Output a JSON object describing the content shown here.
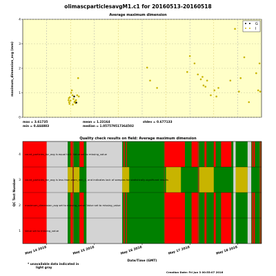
{
  "title": "olimascparticlesavgM1.c1 for 20160513-20160518",
  "chart_data": [
    {
      "type": "scatter",
      "title": "Average maximum dimension",
      "ylabel": "maximum_dimension_avg (mm)",
      "xlim": [
        "2016-05-13 12:00",
        "2016-05-18 12:00"
      ],
      "ylim": [
        0,
        4
      ],
      "yticks": [
        "0",
        "1",
        "2",
        "3",
        "4"
      ],
      "grid": true,
      "legend_position": "top-right",
      "legend": [
        {
          "label": "G",
          "color": "#000000"
        },
        {
          "label": "I",
          "color": "#c8b400"
        }
      ],
      "series": [
        {
          "name": "G",
          "color": "#1a1a1a",
          "points": [
            {
              "x": "2016-05-14 13:50",
              "y": 0.85
            },
            {
              "x": "2016-05-14 14:55",
              "y": 0.6
            }
          ]
        },
        {
          "name": "I",
          "color": "#c8b400",
          "points": [
            {
              "x": "2016-05-14 11:00",
              "y": 0.7
            },
            {
              "x": "2016-05-14 11:10",
              "y": 0.78
            },
            {
              "x": "2016-05-14 11:20",
              "y": 0.62
            },
            {
              "x": "2016-05-14 11:30",
              "y": 0.55
            },
            {
              "x": "2016-05-14 11:40",
              "y": 0.82
            },
            {
              "x": "2016-05-14 12:00",
              "y": 0.68
            },
            {
              "x": "2016-05-14 12:20",
              "y": 1.0
            },
            {
              "x": "2016-05-14 12:40",
              "y": 1.1
            },
            {
              "x": "2016-05-14 13:00",
              "y": 0.9
            },
            {
              "x": "2016-05-14 13:10",
              "y": 0.52
            },
            {
              "x": "2016-05-14 13:30",
              "y": 0.75
            },
            {
              "x": "2016-05-14 14:00",
              "y": 0.62
            },
            {
              "x": "2016-05-14 14:10",
              "y": 0.65
            },
            {
              "x": "2016-05-14 14:30",
              "y": 0.58
            },
            {
              "x": "2016-05-14 14:45",
              "y": 0.7
            },
            {
              "x": "2016-05-14 15:20",
              "y": 0.9
            },
            {
              "x": "2016-05-14 15:50",
              "y": 1.6
            },
            {
              "x": "2016-05-14 16:10",
              "y": 0.85
            },
            {
              "x": "2016-05-16 02:30",
              "y": 2.03
            },
            {
              "x": "2016-05-16 04:00",
              "y": 1.5
            },
            {
              "x": "2016-05-16 07:30",
              "y": 1.2
            },
            {
              "x": "2016-05-16 22:40",
              "y": 1.85
            },
            {
              "x": "2016-05-17 00:00",
              "y": 2.5
            },
            {
              "x": "2016-05-17 02:20",
              "y": 2.2
            },
            {
              "x": "2016-05-17 04:00",
              "y": 1.75
            },
            {
              "x": "2016-05-17 05:30",
              "y": 1.55
            },
            {
              "x": "2016-05-17 06:20",
              "y": 1.65
            },
            {
              "x": "2016-05-17 06:50",
              "y": 1.3
            },
            {
              "x": "2016-05-17 07:50",
              "y": 1.25
            },
            {
              "x": "2016-05-17 08:40",
              "y": 1.5
            },
            {
              "x": "2016-05-17 10:30",
              "y": 0.9
            },
            {
              "x": "2016-05-17 12:20",
              "y": 1.1
            },
            {
              "x": "2016-05-17 13:20",
              "y": 0.85
            },
            {
              "x": "2016-05-17 14:20",
              "y": 1.2
            },
            {
              "x": "2016-05-17 20:20",
              "y": 1.5
            },
            {
              "x": "2016-05-17 22:40",
              "y": 3.61
            },
            {
              "x": "2016-05-18 00:40",
              "y": 1.05
            },
            {
              "x": "2016-05-18 01:30",
              "y": 1.6
            },
            {
              "x": "2016-05-18 03:20",
              "y": 2.45
            },
            {
              "x": "2016-05-18 05:40",
              "y": 0.62
            },
            {
              "x": "2016-05-18 09:20",
              "y": 1.8
            },
            {
              "x": "2016-05-18 10:20",
              "y": 1.1
            },
            {
              "x": "2016-05-18 11:00",
              "y": 2.2
            },
            {
              "x": "2016-05-18 11:20",
              "y": 1.05
            }
          ]
        }
      ],
      "stats": {
        "max": "max = 3.61735",
        "min": "min = 0.444883",
        "mean": "mean = 1.23164",
        "median": "median = 1.057579517364502",
        "stdev": "stdev = 0.677133"
      }
    },
    {
      "type": "heatmap",
      "title": "Quality check results on field: Average maximum dimension",
      "xlabel": "Date/Time (GMT)",
      "ylabel": "QC Test Number",
      "xlim": [
        "2016-05-13 12:00",
        "2016-05-18 12:00"
      ],
      "xticks": [
        "May 14 2016",
        "May 15 2016",
        "May 16 2016",
        "May 17 2016",
        "May 18 2016"
      ],
      "rows": [
        {
          "test": "1",
          "label": "Value set to missing_value"
        },
        {
          "test": "2",
          "label": "maximum_dimension_avg set to missing_value: Value set to missing_value"
        },
        {
          "test": "3",
          "label": "count_particles_for_avg is less than warn_min_1, and indicates lack of samples for statistically-significant results"
        },
        {
          "test": "4",
          "label": "count_particles_for_avg is equal to 0. Value set to missing_value"
        }
      ],
      "colors": {
        "pass": "#008000",
        "missing": "#ff0000",
        "warn": "#c8b400",
        "unavailable": "#d3d3d3",
        "transition": "#8b4513"
      },
      "segments_all_rows": [
        {
          "from": "2016-05-13 12:00",
          "to": "2016-05-14 00:00",
          "state": "missing"
        },
        {
          "from": "2016-05-14 00:00",
          "to": "2016-05-14 10:35",
          "state": "unavailable"
        },
        {
          "from": "2016-05-14 20:00",
          "to": "2016-05-15 14:00",
          "state": "unavailable"
        },
        {
          "from": "2016-05-17 21:50",
          "to": "2016-05-17 23:00",
          "state": "unavailable"
        },
        {
          "from": "2016-05-18 05:00",
          "to": "2016-05-18 06:50",
          "state": "unavailable"
        }
      ],
      "segments_test3": [
        {
          "from": "2016-05-14 10:35",
          "to": "2016-05-14 16:30",
          "state": "warn"
        },
        {
          "from": "2016-05-15 14:00",
          "to": "2016-05-15 17:30",
          "state": "warn"
        },
        {
          "from": "2016-05-16 12:00",
          "to": "2016-05-16 19:30",
          "state": "warn"
        },
        {
          "from": "2016-05-17 04:40",
          "to": "2016-05-17 12:00",
          "state": "warn"
        },
        {
          "from": "2016-05-17 23:00",
          "to": "2016-05-18 05:00",
          "state": "warn"
        }
      ],
      "segments_missing_rows": [
        {
          "from": "2016-05-14 12:00",
          "to": "2016-05-14 13:00",
          "state": "missing"
        },
        {
          "from": "2016-05-14 16:30",
          "to": "2016-05-14 18:40",
          "state": "missing"
        },
        {
          "from": "2016-05-15 14:40",
          "to": "2016-05-15 15:10",
          "state": "missing"
        },
        {
          "from": "2016-05-15 16:00",
          "to": "2016-05-15 16:20",
          "state": "missing"
        },
        {
          "from": "2016-05-16 11:20",
          "to": "2016-05-16 21:30",
          "state": "missing"
        },
        {
          "from": "2016-05-17 00:50",
          "to": "2016-05-17 04:00",
          "state": "missing"
        },
        {
          "from": "2016-05-17 07:20",
          "to": "2016-05-17 08:20",
          "state": "missing"
        },
        {
          "from": "2016-05-17 12:00",
          "to": "2016-05-17 13:00",
          "state": "missing"
        },
        {
          "from": "2016-05-17 15:40",
          "to": "2016-05-17 20:50",
          "state": "missing"
        },
        {
          "from": "2016-05-18 07:10",
          "to": "2016-05-18 07:40",
          "state": "missing"
        },
        {
          "from": "2016-05-18 08:00",
          "to": "2016-05-18 08:40",
          "state": "missing"
        }
      ],
      "segments_transition": [
        {
          "from": "2016-05-14 13:00",
          "to": "2016-05-14 13:40",
          "state": "transition"
        },
        {
          "from": "2016-05-16 11:00",
          "to": "2016-05-16 11:20",
          "state": "transition"
        },
        {
          "from": "2016-05-17 04:00",
          "to": "2016-05-17 04:40",
          "state": "transition"
        },
        {
          "from": "2016-05-18 11:00",
          "to": "2016-05-18 12:00",
          "state": "transition"
        }
      ],
      "footnote": "* unavailable data indicated in light gray"
    }
  ],
  "footer": {
    "creation_date": "Creation Date: Fri Jun  3 00:55:07 2016"
  }
}
